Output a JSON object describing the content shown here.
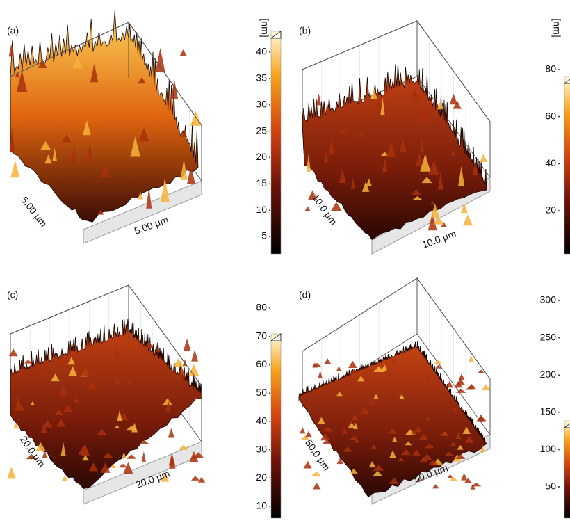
{
  "panels": [
    {
      "label": "(a)",
      "x_label": "5.00 µm",
      "y_label": "5.00 µm",
      "colorbar": {
        "unit": "[nm]",
        "ticks": [
          40,
          35,
          30,
          25,
          20,
          15,
          10,
          5
        ]
      }
    },
    {
      "label": "(b)",
      "x_label": "10.0 µm",
      "y_label": "10.0 µm",
      "colorbar": {
        "unit": "[nm]",
        "ticks": [
          80,
          60,
          40,
          20
        ]
      }
    },
    {
      "label": "(c)",
      "x_label": "20.0 µm",
      "y_label": "20.0 µm",
      "colorbar": {
        "ticks": [
          80,
          70,
          60,
          50,
          40,
          30,
          20,
          10
        ]
      }
    },
    {
      "label": "(d)",
      "x_label": "50.0 µm",
      "y_label": "50.0 µm",
      "colorbar": {
        "ticks": [
          300,
          250,
          200,
          150,
          100,
          50
        ]
      }
    }
  ]
}
